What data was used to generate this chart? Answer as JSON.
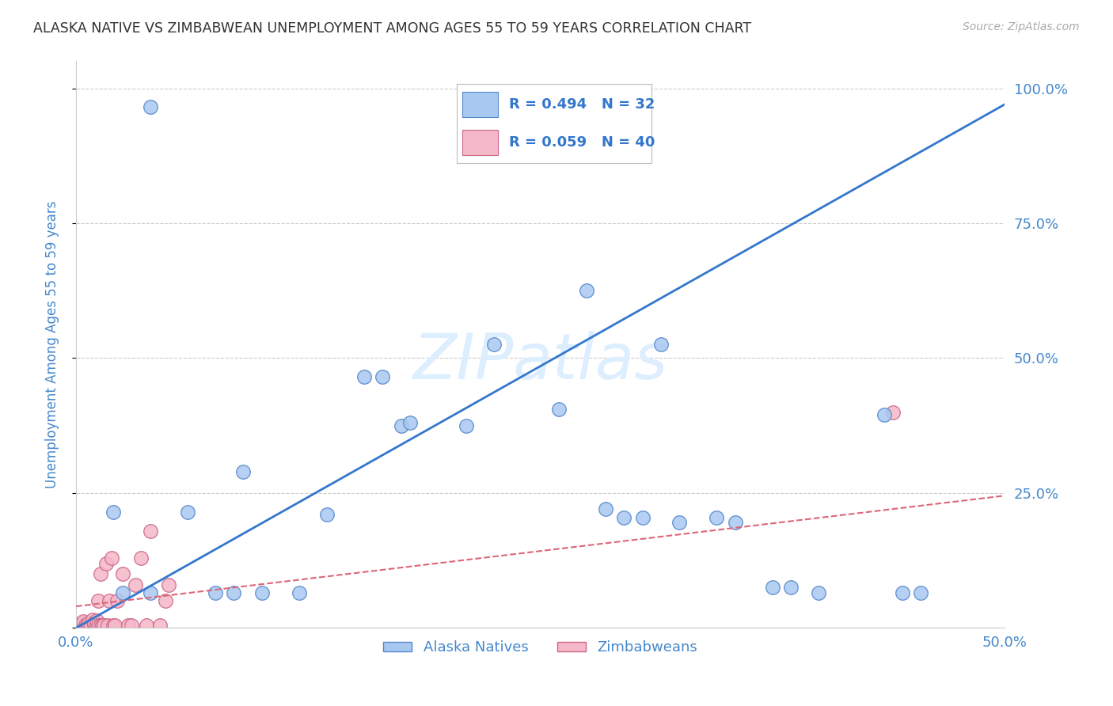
{
  "title": "ALASKA NATIVE VS ZIMBABWEAN UNEMPLOYMENT AMONG AGES 55 TO 59 YEARS CORRELATION CHART",
  "source": "Source: ZipAtlas.com",
  "ylabel": "Unemployment Among Ages 55 to 59 years",
  "xlim": [
    0.0,
    0.5
  ],
  "ylim": [
    0.0,
    1.05
  ],
  "xticks": [
    0.0,
    0.1,
    0.2,
    0.3,
    0.4,
    0.5
  ],
  "xticklabels": [
    "0.0%",
    "",
    "",
    "",
    "",
    "50.0%"
  ],
  "yticks": [
    0.0,
    0.25,
    0.5,
    0.75,
    1.0
  ],
  "yticklabels": [
    "",
    "25.0%",
    "50.0%",
    "75.0%",
    "100.0%"
  ],
  "alaska_R": "0.494",
  "alaska_N": "32",
  "zimbabwe_R": "0.059",
  "zimbabwe_N": "40",
  "alaska_color": "#a8c8f0",
  "alaska_edge_color": "#5588cc",
  "zimbabwe_color": "#f5b8c8",
  "zimbabwe_edge_color": "#cc6688",
  "alaska_line_color": "#3377cc",
  "zimbabwe_line_color": "#dd6677",
  "background_color": "#ffffff",
  "grid_color": "#cccccc",
  "title_color": "#333333",
  "axis_label_color": "#4488cc",
  "tick_label_color": "#4488cc",
  "source_color": "#aaaaaa",
  "watermark_color": "#ddeeff",
  "alaska_scatter_x": [
    0.04,
    0.09,
    0.135,
    0.155,
    0.165,
    0.175,
    0.18,
    0.21,
    0.225,
    0.26,
    0.275,
    0.285,
    0.295,
    0.305,
    0.315,
    0.325,
    0.345,
    0.355,
    0.375,
    0.385,
    0.4,
    0.435,
    0.445,
    0.455,
    0.02,
    0.025,
    0.04,
    0.06,
    0.075,
    0.085,
    0.1,
    0.12
  ],
  "alaska_scatter_y": [
    0.965,
    0.29,
    0.21,
    0.465,
    0.465,
    0.375,
    0.38,
    0.375,
    0.525,
    0.405,
    0.625,
    0.22,
    0.205,
    0.205,
    0.525,
    0.195,
    0.205,
    0.195,
    0.075,
    0.075,
    0.065,
    0.395,
    0.065,
    0.065,
    0.215,
    0.065,
    0.065,
    0.215,
    0.065,
    0.065,
    0.065,
    0.065
  ],
  "zimbabwe_scatter_x": [
    0.002,
    0.002,
    0.003,
    0.003,
    0.004,
    0.004,
    0.005,
    0.006,
    0.007,
    0.007,
    0.008,
    0.009,
    0.01,
    0.01,
    0.011,
    0.011,
    0.012,
    0.012,
    0.013,
    0.013,
    0.014,
    0.015,
    0.016,
    0.017,
    0.018,
    0.019,
    0.02,
    0.021,
    0.022,
    0.025,
    0.028,
    0.03,
    0.032,
    0.035,
    0.038,
    0.04,
    0.44,
    0.045,
    0.048,
    0.05
  ],
  "zimbabwe_scatter_y": [
    0.005,
    0.008,
    0.005,
    0.01,
    0.005,
    0.012,
    0.005,
    0.005,
    0.005,
    0.01,
    0.005,
    0.015,
    0.005,
    0.01,
    0.005,
    0.013,
    0.005,
    0.05,
    0.005,
    0.1,
    0.005,
    0.005,
    0.12,
    0.005,
    0.05,
    0.13,
    0.005,
    0.005,
    0.05,
    0.1,
    0.005,
    0.005,
    0.08,
    0.13,
    0.005,
    0.18,
    0.4,
    0.005,
    0.05,
    0.08
  ],
  "alaska_line_x": [
    0.0,
    0.5
  ],
  "alaska_line_y": [
    0.0,
    0.97
  ],
  "zimbabwe_line_x": [
    0.0,
    0.5
  ],
  "zimbabwe_line_y": [
    0.04,
    0.245
  ]
}
